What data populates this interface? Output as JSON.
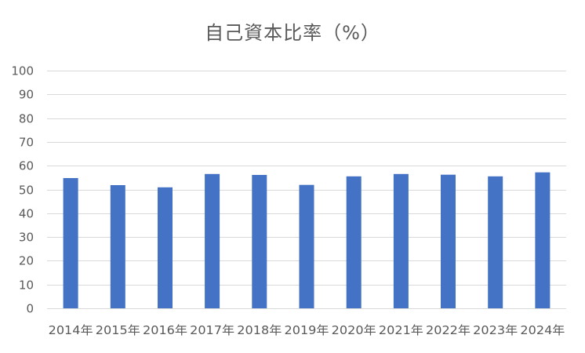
{
  "chart_data": {
    "type": "bar",
    "title": "自己資本比率（%）",
    "xlabel": "",
    "ylabel": "",
    "categories": [
      "2014年",
      "2015年",
      "2016年",
      "2017年",
      "2018年",
      "2019年",
      "2020年",
      "2021年",
      "2022年",
      "2023年",
      "2024年"
    ],
    "values": [
      54.8,
      51.8,
      50.9,
      56.5,
      56.1,
      51.9,
      55.5,
      56.5,
      56.2,
      55.5,
      57.2
    ],
    "ylim": [
      0,
      100
    ],
    "yticks": [
      0,
      10,
      20,
      30,
      40,
      50,
      60,
      70,
      80,
      90,
      100
    ],
    "grid": true,
    "legend": "none",
    "bar_color": "#4472C4",
    "grid_color": "#D9D9D9",
    "text_color": "#595959"
  }
}
